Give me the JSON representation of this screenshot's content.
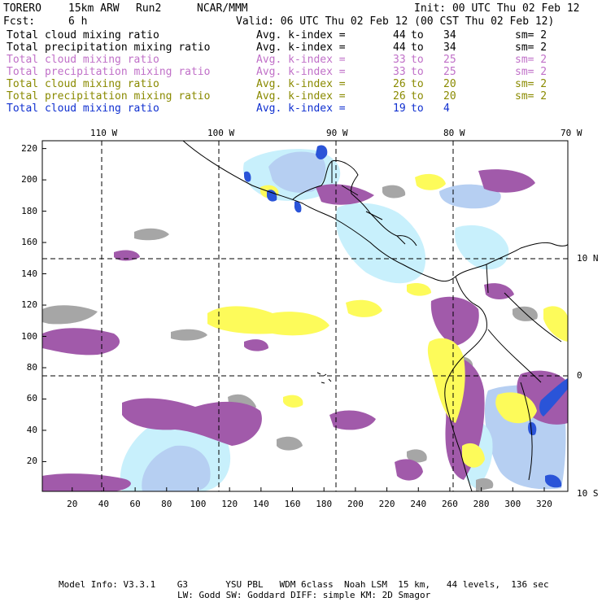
{
  "header": {
    "model": "TORERO",
    "resolution": "15km ARW",
    "run": "Run2",
    "org": "NCAR/MMM",
    "init": "Init: 00 UTC Thu 02 Feb 12",
    "fcst_label": "Fcst:",
    "fcst_value": "6 h",
    "valid": "Valid: 06 UTC Thu 02 Feb 12 (00 CST Thu 02 Feb 12)"
  },
  "legend": [
    {
      "field": "Total cloud mixing ratio",
      "avg": "Avg. k-index =",
      "k_from": "44",
      "to": "to",
      "k_to": "34",
      "sm": "sm= 2",
      "color": "#000000"
    },
    {
      "field": "Total precipitation mixing ratio",
      "avg": "Avg. k-index =",
      "k_from": "44",
      "to": "to",
      "k_to": "34",
      "sm": "sm= 2",
      "color": "#000000"
    },
    {
      "field": "Total cloud mixing ratio",
      "avg": "Avg. k-index =",
      "k_from": "33",
      "to": "to",
      "k_to": "25",
      "sm": "sm= 2",
      "color": "#c070c8"
    },
    {
      "field": "Total precipitation mixing ratio",
      "avg": "Avg. k-index =",
      "k_from": "33",
      "to": "to",
      "k_to": "25",
      "sm": "sm= 2",
      "color": "#c070c8"
    },
    {
      "field": "Total cloud mixing ratio",
      "avg": "Avg. k-index =",
      "k_from": "26",
      "to": "to",
      "k_to": "20",
      "sm": "sm= 2",
      "color": "#8a8a00"
    },
    {
      "field": "Total precipitation mixing ratio",
      "avg": "Avg. k-index =",
      "k_from": "26",
      "to": "to",
      "k_to": "20",
      "sm": "sm= 2",
      "color": "#8a8a00"
    },
    {
      "field": "Total cloud mixing ratio",
      "avg": "Avg. k-index =",
      "k_from": "19",
      "to": "to",
      "k_to": "4",
      "sm": "",
      "color": "#1030d0"
    }
  ],
  "axes": {
    "lon_labels": [
      "110 W",
      "100 W",
      "90 W",
      "80 W",
      "70 W"
    ],
    "lat_labels": [
      "10 N",
      "0",
      "10 S"
    ],
    "x_ticks": [
      "20",
      "40",
      "60",
      "80",
      "100",
      "120",
      "140",
      "160",
      "180",
      "200",
      "220",
      "240",
      "260",
      "280",
      "300",
      "320"
    ],
    "y_ticks": [
      "220",
      "200",
      "180",
      "160",
      "140",
      "120",
      "100",
      "80",
      "60",
      "40",
      "20"
    ],
    "grid_i_range": [
      1,
      335
    ],
    "grid_j_range": [
      1,
      225
    ]
  },
  "fill_colors": {
    "gray": "#a6a6a6",
    "purple": "#a15aaa",
    "yellow": "#fdfb5a",
    "pale_blue": "#c8f0fc",
    "light_blue": "#b6cff2",
    "dark_blue": "#2a54d8"
  },
  "footer": {
    "line1": "Model Info: V3.3.1    G3       YSU PBL   WDM 6class  Noah LSM  15 km,   44 levels,  136 sec",
    "line2": "LW: Godd SW: Goddard DIFF: simple KM: 2D Smagor"
  }
}
